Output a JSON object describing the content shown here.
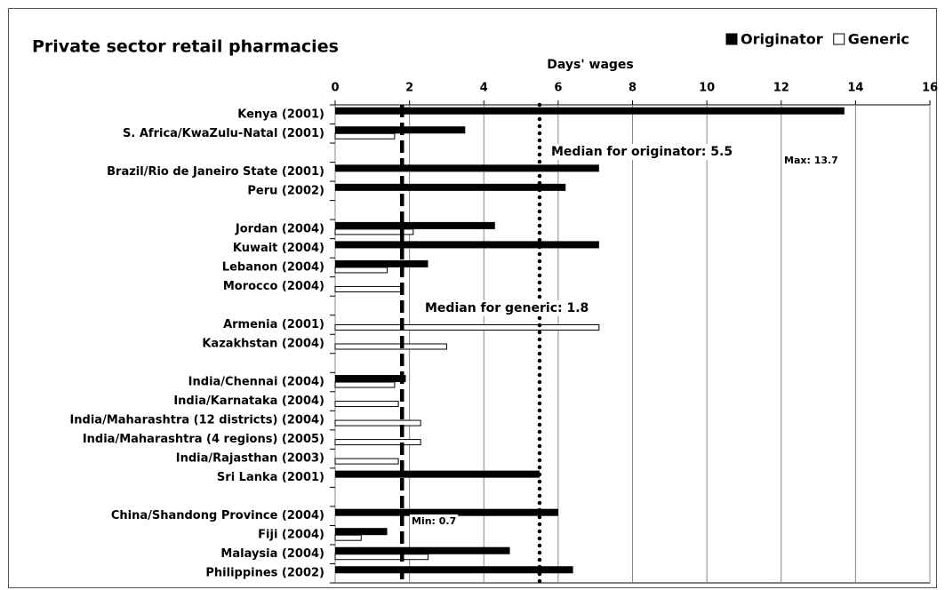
{
  "chart_data": {
    "type": "hbar",
    "title": "Private sector retail pharmacies",
    "x_label": "Days' wages",
    "categories": [
      "Kenya (2001)",
      "S. Africa/KwaZulu-Natal (2001)",
      null,
      "Brazil/Rio de Janeiro State (2001)",
      "Peru (2002)",
      null,
      "Jordan (2004)",
      "Kuwait (2004)",
      "Lebanon (2004)",
      "Morocco (2004)",
      null,
      "Armenia (2001)",
      "Kazakhstan (2004)",
      null,
      "India/Chennai (2004)",
      "India/Karnataka (2004)",
      "India/Maharashtra (12 districts) (2004)",
      "India/Maharashtra (4 regions) (2005)",
      "India/Rajasthan (2003)",
      "Sri Lanka (2001)",
      null,
      "China/Shandong Province (2004)",
      "Fiji (2004)",
      "Malaysia (2004)",
      "Philippines (2002)"
    ],
    "series": [
      {
        "name": "Originator",
        "color": "#000000",
        "values": [
          13.7,
          3.5,
          null,
          7.1,
          6.2,
          null,
          4.3,
          7.1,
          2.5,
          null,
          null,
          null,
          null,
          null,
          1.9,
          null,
          null,
          null,
          null,
          5.5,
          null,
          6.0,
          1.4,
          4.7,
          6.4
        ]
      },
      {
        "name": "Generic",
        "color": "#ffffff",
        "values": [
          null,
          1.6,
          null,
          null,
          null,
          null,
          2.1,
          null,
          1.4,
          1.8,
          null,
          7.1,
          3.0,
          null,
          1.6,
          1.7,
          2.3,
          2.3,
          1.7,
          null,
          null,
          null,
          0.7,
          2.5,
          null
        ]
      }
    ],
    "xlim": [
      0,
      16
    ],
    "xticks": [
      0,
      2,
      4,
      6,
      8,
      10,
      12,
      14,
      16
    ],
    "grid": true,
    "legend": "top-right",
    "median_lines": [
      {
        "series": "Originator",
        "value": 5.5,
        "style": "dotted"
      },
      {
        "series": "Generic",
        "value": 1.8,
        "style": "dashed"
      }
    ],
    "annotations": [
      "Max: 13.7",
      "Median for originator: 5.5",
      "Median for generic: 1.8",
      "Min: 0.7"
    ]
  }
}
